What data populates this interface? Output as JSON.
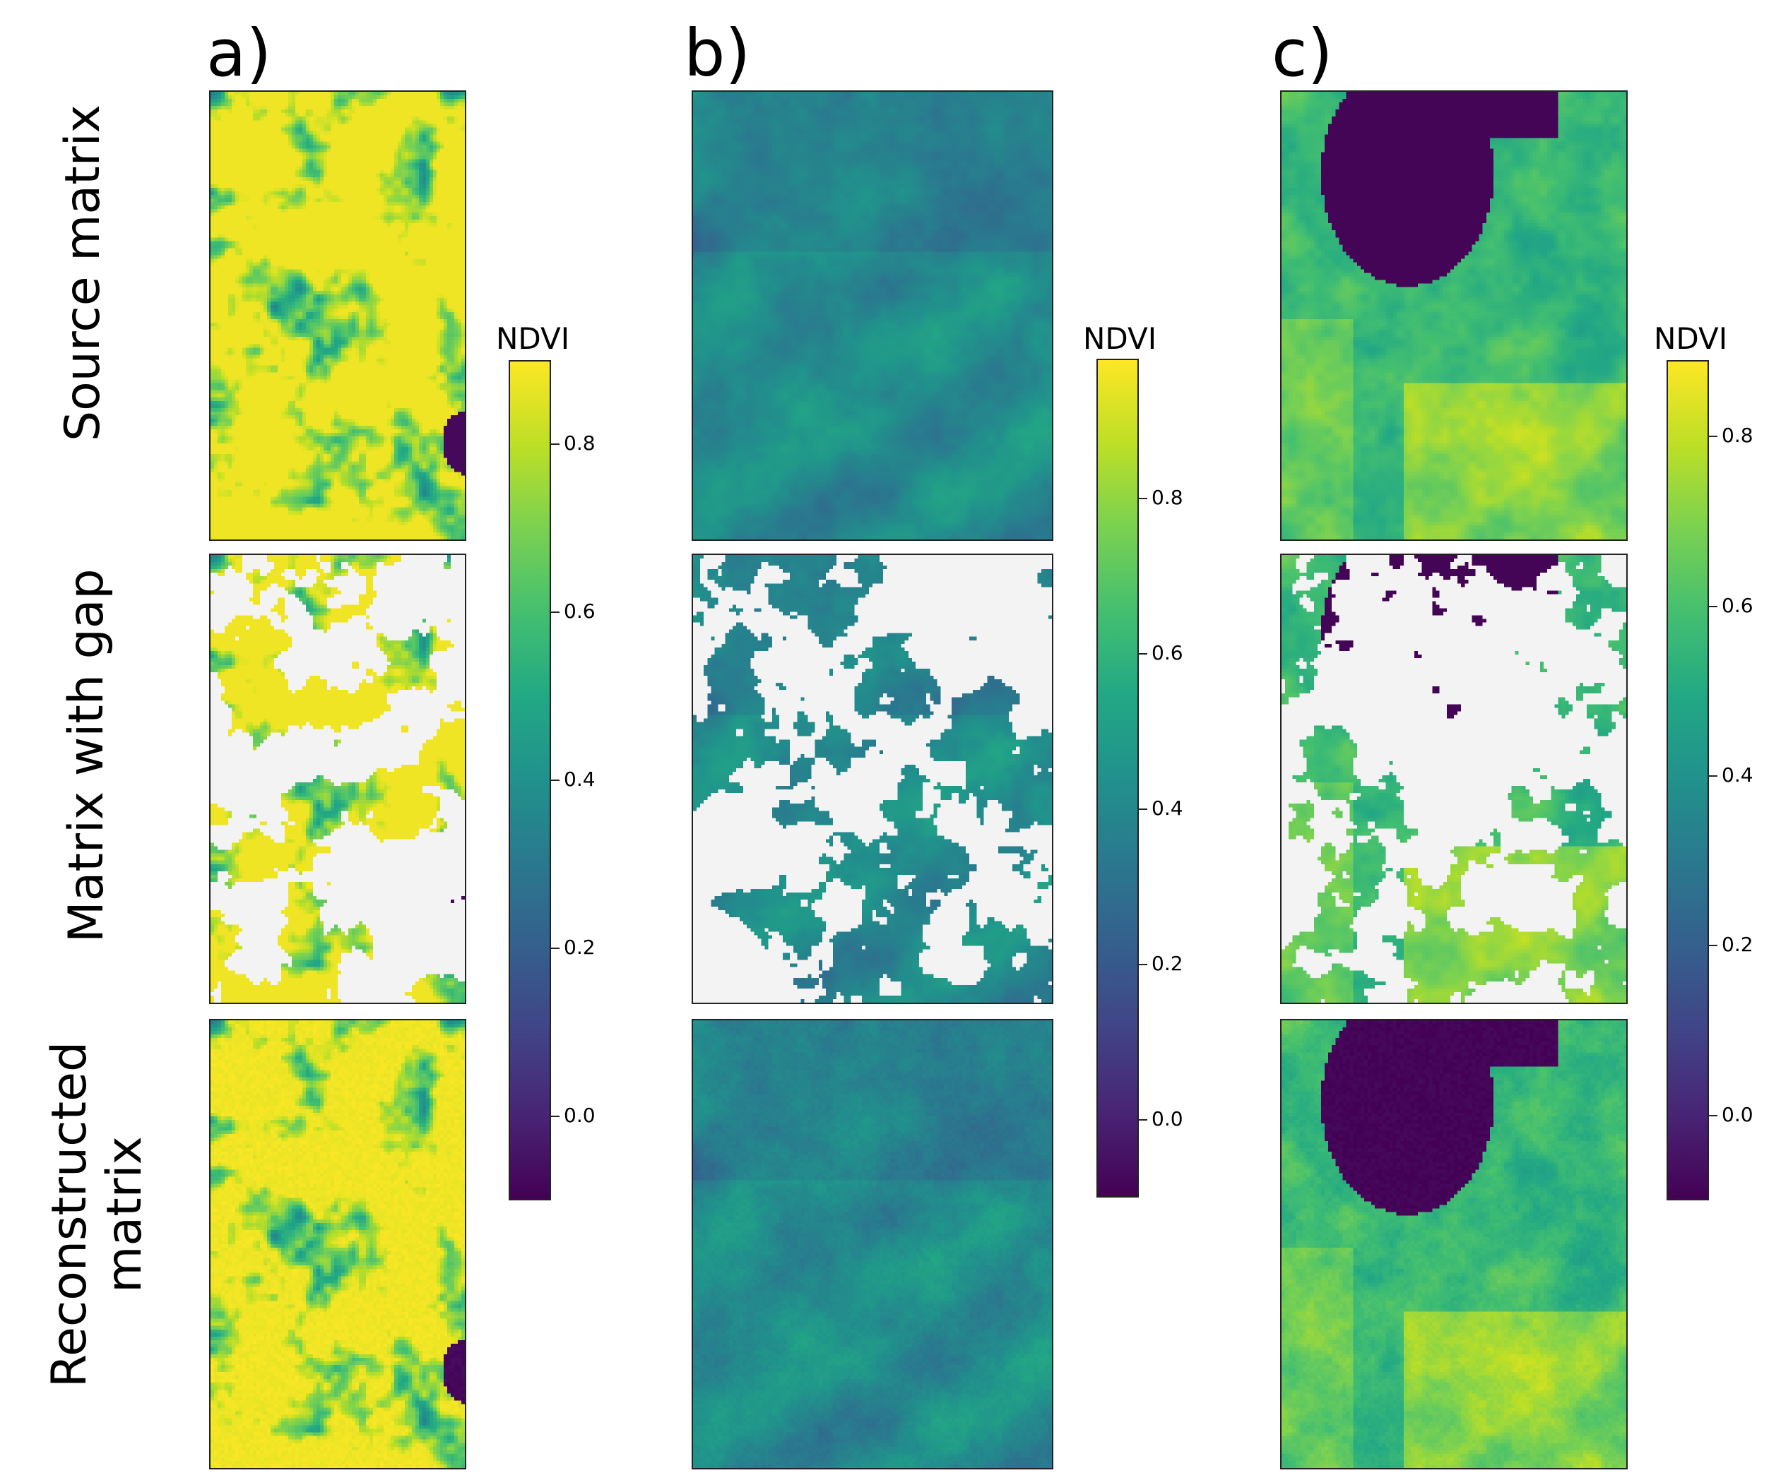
{
  "panels": [
    {
      "letter": "a)"
    },
    {
      "letter": "b)"
    },
    {
      "letter": "c)"
    }
  ],
  "rows": {
    "source": "Source matrix",
    "gap": "Matrix with gap",
    "reconstructed_line1": "Reconstructed",
    "reconstructed_line2": "matrix"
  },
  "chart_data": [
    {
      "type": "heatmap",
      "panel": "a)",
      "colormap": "viridis",
      "colorbar": {
        "title": "NDVI",
        "range": [
          -0.1,
          0.9
        ],
        "ticks": [
          0.0,
          0.2,
          0.4,
          0.6,
          0.8
        ],
        "tick_labels": [
          "0.0",
          "0.2",
          "0.4",
          "0.6",
          "0.8"
        ]
      },
      "rows": [
        "Source matrix",
        "Matrix with gap",
        "Reconstructed matrix"
      ],
      "description_values": {
        "typical_ndvi": 0.85,
        "low_region_ndvi": -0.1
      }
    },
    {
      "type": "heatmap",
      "panel": "b)",
      "colormap": "viridis",
      "colorbar": {
        "title": "NDVI",
        "range": [
          -0.1,
          0.98
        ],
        "ticks": [
          0.0,
          0.2,
          0.4,
          0.6,
          0.8
        ],
        "tick_labels": [
          "0.0",
          "0.2",
          "0.4",
          "0.6",
          "0.8"
        ]
      },
      "rows": [
        "Source matrix",
        "Matrix with gap",
        "Reconstructed matrix"
      ],
      "description_values": {
        "typical_ndvi": 0.35
      }
    },
    {
      "type": "heatmap",
      "panel": "c)",
      "colormap": "viridis",
      "colorbar": {
        "title": "NDVI",
        "range": [
          -0.1,
          0.89
        ],
        "ticks": [
          0.0,
          0.2,
          0.4,
          0.6,
          0.8
        ],
        "tick_labels": [
          "0.0",
          "0.2",
          "0.4",
          "0.6",
          "0.8"
        ]
      },
      "rows": [
        "Source matrix",
        "Matrix with gap",
        "Reconstructed matrix"
      ],
      "description_values": {
        "typical_ndvi": 0.65,
        "water_ndvi": -0.1
      }
    }
  ]
}
